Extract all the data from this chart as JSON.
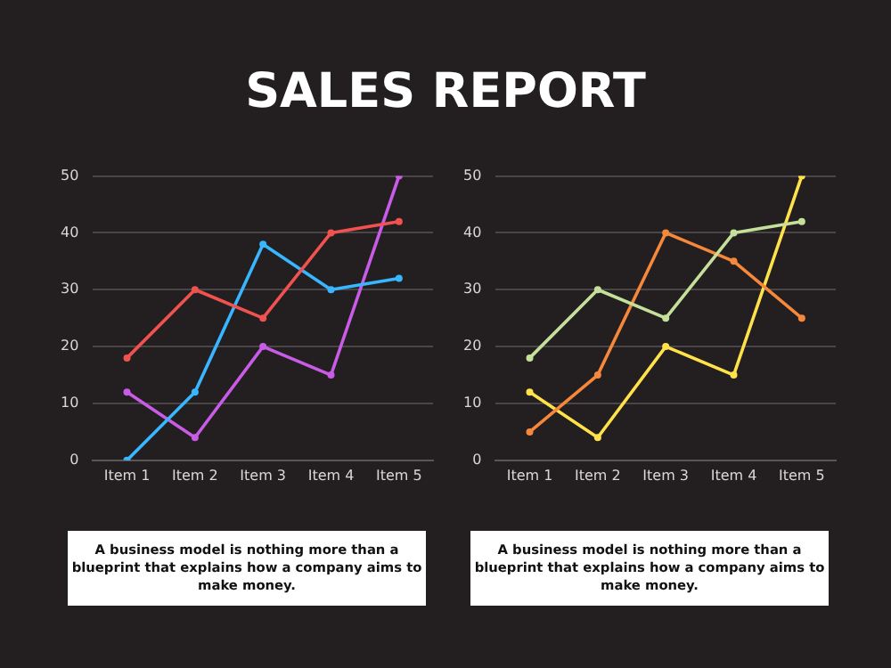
{
  "chart_data": [
    {
      "type": "line",
      "title": "SALES REPORT",
      "categories": [
        "Item 1",
        "Item 2",
        "Item 3",
        "Item 4",
        "Item 5"
      ],
      "series": [
        {
          "color": "#f0524f",
          "values": [
            18,
            30,
            25,
            40,
            42
          ]
        },
        {
          "color": "#38b6ff",
          "values": [
            0,
            12,
            38,
            30,
            32
          ]
        },
        {
          "color": "#c95ce6",
          "values": [
            12,
            4,
            20,
            15,
            50
          ]
        }
      ],
      "ylim": [
        0,
        50
      ],
      "yticks": [
        0,
        10,
        20,
        30,
        40,
        50
      ],
      "grid": "y",
      "legend": false,
      "marker": "circle",
      "line_style": "solid",
      "annotations": [
        "A business model is nothing more than a blueprint that explains how a company aims to make money."
      ]
    },
    {
      "type": "line",
      "categories": [
        "Item 1",
        "Item 2",
        "Item 3",
        "Item 4",
        "Item 5"
      ],
      "series": [
        {
          "color": "#c5e09a",
          "values": [
            18,
            30,
            25,
            40,
            42
          ]
        },
        {
          "color": "#f5883a",
          "values": [
            5,
            15,
            40,
            35,
            25
          ]
        },
        {
          "color": "#ffe14a",
          "values": [
            12,
            4,
            20,
            15,
            50
          ]
        }
      ],
      "ylim": [
        0,
        50
      ],
      "yticks": [
        0,
        10,
        20,
        30,
        40,
        50
      ],
      "grid": "y",
      "legend": false,
      "marker": "circle",
      "line_style": "solid",
      "annotations": [
        "A business model is nothing more than a blueprint that explains how a company aims to make money."
      ]
    }
  ]
}
